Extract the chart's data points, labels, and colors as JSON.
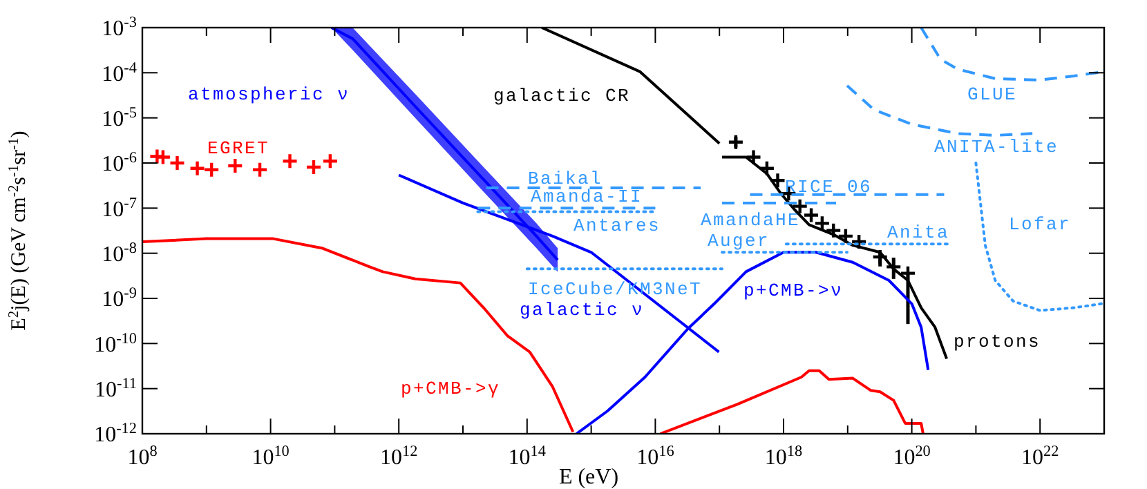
{
  "chart_data": {
    "type": "line",
    "xlabel": "E (eV)",
    "ylabel": "E$^{2}$j(E) (GeV cm$^{-2}$s$^{-1}$sr$^{-1}$)",
    "log": "xy",
    "xlim": [
      100000000.0,
      1e+23
    ],
    "ylim": [
      1e-12,
      0.001
    ],
    "xticks": [
      {
        "value": 100000000.0,
        "label": "10$^{8}$"
      },
      {
        "value": 1000000000.0,
        "label": null
      },
      {
        "value": 10000000000.0,
        "label": "10$^{10}$"
      },
      {
        "value": 100000000000.0,
        "label": null
      },
      {
        "value": 1000000000000.0,
        "label": "10$^{12}$"
      },
      {
        "value": 10000000000000.0,
        "label": null
      },
      {
        "value": 100000000000000.0,
        "label": "10$^{14}$"
      },
      {
        "value": 1000000000000000.0,
        "label": null
      },
      {
        "value": 1e+16,
        "label": "10$^{16}$"
      },
      {
        "value": 1e+17,
        "label": null
      },
      {
        "value": 1e+18,
        "label": "10$^{18}$"
      },
      {
        "value": 1e+19,
        "label": null
      },
      {
        "value": 1e+20,
        "label": "10$^{20}$"
      },
      {
        "value": 1e+21,
        "label": null
      },
      {
        "value": 1e+22,
        "label": "10$^{22}$"
      },
      {
        "value": 1e+23,
        "label": null
      }
    ],
    "yticks": [
      {
        "value": 1e-12,
        "label": "10$^{-12}$"
      },
      {
        "value": 1e-11,
        "label": "10$^{-11}$"
      },
      {
        "value": 1e-10,
        "label": "10$^{-10}$"
      },
      {
        "value": 1e-09,
        "label": "10$^{-9}$"
      },
      {
        "value": 1e-08,
        "label": "10$^{-8}$"
      },
      {
        "value": 1e-07,
        "label": "10$^{-7}$"
      },
      {
        "value": 1e-06,
        "label": "10$^{-6}$"
      },
      {
        "value": 1e-05,
        "label": "10$^{-5}$"
      },
      {
        "value": 0.0001,
        "label": "10$^{-4}$"
      },
      {
        "value": 0.001,
        "label": "10$^{-3}$"
      }
    ],
    "series": [
      {
        "name": "galactic CR",
        "color": "#000000",
        "x": [
          170000000000000.0,
          5800000000000000.0,
          1e+17
        ],
        "values": [
          0.001,
          0.000105,
          2.7e-06
        ]
      },
      {
        "name": "protons",
        "color": "#000000",
        "x": [
          1.1e+17,
          2.6e+17,
          5.5e+17,
          9.1e+17,
          1.5e+18,
          2.5e+18,
          6e+18,
          1.2e+19,
          3.2e+19,
          5.2e+19,
          8.7e+19,
          1.4e+20,
          2.3e+20,
          3.5e+20
        ],
        "values": [
          1.35e-06,
          1.35e-06,
          5.8e-07,
          2.1e-07,
          9.1e-08,
          4.3e-08,
          2.6e-08,
          1.5e-08,
          1.05e-08,
          4.5e-09,
          2.5e-09,
          6.2e-10,
          2.3e-10,
          4.6e-11
        ]
      },
      {
        "type": "scatter",
        "marker": "cross",
        "color": "#000000",
        "x": [
          1.8e+17,
          3.4e+17,
          5.5e+17,
          8.1e+17,
          1.2e+18,
          1.8e+18,
          2.7e+18,
          4e+18,
          6e+18,
          9.3e+18,
          1.5e+19,
          3.2e+19,
          5.2e+19,
          8.7e+19
        ],
        "values": [
          2.9e-06,
          1.35e-06,
          7.6e-07,
          4.1e-07,
          2.1e-07,
          1.1e-07,
          7e-08,
          4.6e-08,
          3.2e-08,
          2.4e-08,
          1.8e-08,
          8.3e-09,
          5e-09,
          3.6e-09
        ],
        "errors": [
          [
            2.2e-06,
            3.8e-06
          ],
          null,
          null,
          null,
          null,
          null,
          null,
          null,
          null,
          null,
          null,
          [
            5.1e-09,
            1.05e-08
          ],
          [
            2.7e-09,
            8e-09
          ],
          [
            2.7e-10,
            3.6e-09
          ]
        ]
      },
      {
        "name": "atmospheric ν",
        "color": "#0000ff",
        "x": [
          89000000000.0,
          190000000000.0,
          1800000000000.0,
          21000000000000.0,
          140000000000000.0,
          300000000000000.0
        ],
        "values": [
          0.001,
          0.00057,
          1.8e-05,
          4.3e-07,
          2.4e-08,
          7.1e-09
        ],
        "upper": [
          0.001,
          0.001,
          3.4e-05,
          8.1e-07,
          4.6e-08,
          1.3e-08
        ],
        "lower": [
          0.001,
          0.00032,
          1e-05,
          2.3e-07,
          1.3e-08,
          3.9e-09
        ]
      },
      {
        "name": "galactic ν",
        "color": "#0000ff",
        "x": [
          1000000000000.0,
          10000000000000.0,
          250000000000000.0,
          1000000000000000.0,
          9.8e+16
        ],
        "values": [
          5.4e-07,
          1.3e-07,
          2.4e-08,
          1.05e-08,
          6.5e-11
        ]
      },
      {
        "name": "p+CMB->ν",
        "color": "#0000ff",
        "x": [
          590000000000000.0,
          1800000000000000.0,
          6900000000000000.0,
          3.2e+16,
          8.3e+16,
          2.6e+17,
          1e+18,
          3.2e+18,
          1.2e+19,
          4.4e+19,
          1e+20,
          1.4e+20,
          1.8e+20
        ],
        "values": [
          1e-12,
          3.2e-12,
          1.8e-11,
          2.1e-10,
          7.6e-10,
          3.9e-09,
          1.05e-08,
          1.05e-08,
          6.3e-09,
          2.5e-09,
          7.6e-10,
          2.3e-10,
          2.6e-11
        ]
      },
      {
        "name": "p+CMB->γ",
        "color": "#ff0000",
        "x": [
          100000000.0,
          1000000000.0,
          11000000000.0,
          63000000000.0,
          340000000000.0,
          560000000000.0,
          1800000000000.0,
          9100000000000.0,
          21000000000000.0,
          49000000000000.0,
          110000000000000.0,
          250000000000000.0,
          520000000000000.0
        ],
        "values": [
          1.8e-08,
          2.1e-08,
          2.1e-08,
          1.3e-08,
          5.1e-09,
          3.9e-09,
          2.7e-09,
          2.2e-09,
          6.2e-10,
          1.5e-10,
          6.5e-11,
          1.1e-11,
          1.1e-12
        ]
      },
      {
        "color": "#ff0000",
        "x": [
          1.2e+16,
          1.9e+17,
          1.9e+18,
          2.5e+18,
          3.6e+18,
          5.1e+18,
          1.2e+19,
          2.3e+19,
          3.2e+19,
          5.2e+19,
          7.9e+19,
          1.4e+20,
          1.5e+20
        ],
        "values": [
          1e-12,
          4.5e-12,
          1.8e-11,
          2.5e-11,
          2.5e-11,
          1.6e-11,
          1.7e-11,
          9.1e-12,
          8.5e-12,
          5.5e-12,
          1.7e-12,
          1.7e-12,
          1e-12
        ]
      },
      {
        "name": "EGRET",
        "type": "scatter",
        "marker": "cross",
        "color": "#ff0000",
        "x": [
          170000000.0,
          210000000.0,
          350000000.0,
          720000000.0,
          1200000000.0,
          2800000000.0,
          6800000000.0,
          20000000000.0,
          47000000000.0,
          85000000000.0
        ],
        "values": [
          1.4e-06,
          1.35e-06,
          1e-06,
          7.6e-07,
          7.1e-07,
          8.7e-07,
          7.1e-07,
          1.1e-06,
          8.1e-07,
          1.1e-06
        ]
      },
      {
        "name": "Baikal",
        "line_style": "dashed",
        "color": "#3399ff",
        "x": [
          23000000000000.0,
          5.1e+16
        ],
        "values": [
          2.8e-07,
          2.8e-07
        ]
      },
      {
        "name": "Amanda-II",
        "line_style": "dashed",
        "color": "#3399ff",
        "x": [
          17000000000000.0,
          1e+16
        ],
        "values": [
          1e-07,
          1e-07
        ]
      },
      {
        "name": "Antares",
        "line_style": "dotted",
        "color": "#3399ff",
        "x": [
          17000000000000.0,
          1e+16
        ],
        "values": [
          8.3e-08,
          8.3e-08
        ]
      },
      {
        "name": "RICE 06",
        "line_style": "dashed",
        "color": "#3399ff",
        "x": [
          3e+17,
          3.2e+20
        ],
        "values": [
          2e-07,
          2e-07
        ]
      },
      {
        "name": "AmandaHE",
        "line_style": "dashed",
        "color": "#3399ff",
        "x": [
          1.1e+17,
          6.6e+18
        ],
        "values": [
          1.3e-07,
          1.3e-07
        ]
      },
      {
        "name": "Auger",
        "line_style": "dotted",
        "color": "#3399ff",
        "x": [
          1.1e+17,
          9.8e+18
        ],
        "values": [
          1.05e-08,
          1.05e-08
        ]
      },
      {
        "name": "Anita",
        "line_style": "dotted",
        "color": "#3399ff",
        "x": [
          1.1e+18,
          3.9e+20
        ],
        "values": [
          1.6e-08,
          1.6e-08
        ]
      },
      {
        "name": "IceCube/KM3NeT",
        "line_style": "dotted",
        "color": "#3399ff",
        "x": [
          100000000000000.0,
          1.1e+17
        ],
        "values": [
          4.5e-09,
          4.5e-09
        ]
      },
      {
        "name": "GLUE",
        "line_style": "dashed",
        "color": "#3399ff",
        "x": [
          1.4e+20,
          2.8e+20,
          5.2e+20,
          2e+21,
          1e+22,
          3.4e+22,
          9.5e+22
        ],
        "values": [
          0.001,
          0.0002,
          0.00012,
          7.4e-05,
          6.9e-05,
          8.5e-05,
          0.000105
        ]
      },
      {
        "name": "ANITA-lite",
        "line_style": "dashed",
        "color": "#3399ff",
        "x": [
          9.8e+18,
          2.6e+19,
          1e+20,
          5.2e+20,
          2e+21,
          7.6e+21
        ],
        "values": [
          5.2e-05,
          1.5e-05,
          7.2e-06,
          4.5e-06,
          4.1e-06,
          4.5e-06
        ]
      },
      {
        "name": "Lofar",
        "line_style": "dotted",
        "color": "#3399ff",
        "x": [
          1e+21,
          1.4e+21,
          2e+21,
          3.8e+21,
          1e+22,
          3.4e+22,
          9.1e+22
        ],
        "values": [
          1e-06,
          1.5e-08,
          2.5e-09,
          8.7e-10,
          5.4e-10,
          6.2e-10,
          7.6e-10
        ]
      }
    ]
  }
}
